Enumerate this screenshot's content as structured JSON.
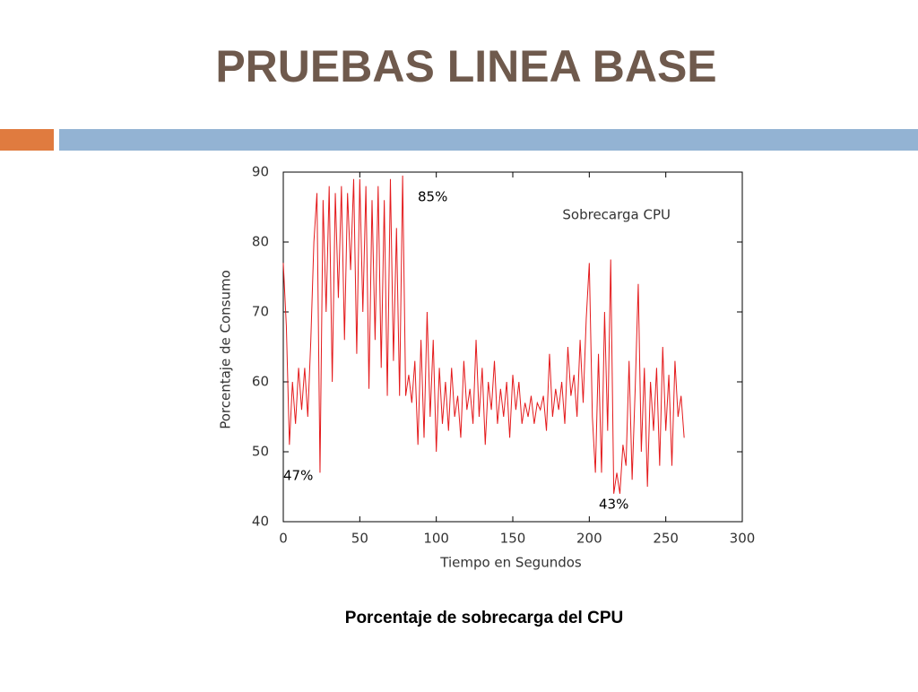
{
  "chart_data": {
    "type": "line",
    "title": "PRUEBAS LINEA BASE",
    "caption": "Porcentaje de sobrecarga del CPU",
    "x_label": "Tiempo en Segundos",
    "y_label": "Porcentaje de Consumo",
    "annotations": [
      "85%",
      "47%",
      "43%"
    ],
    "x": [
      0,
      2,
      4,
      6,
      8,
      10,
      12,
      14,
      16,
      18,
      20,
      22,
      24,
      26,
      28,
      30,
      32,
      34,
      36,
      38,
      40,
      42,
      44,
      46,
      48,
      50,
      52,
      54,
      56,
      58,
      60,
      62,
      64,
      66,
      68,
      70,
      72,
      74,
      76,
      78,
      80,
      82,
      84,
      86,
      88,
      90,
      92,
      94,
      96,
      98,
      100,
      102,
      104,
      106,
      108,
      110,
      112,
      114,
      116,
      118,
      120,
      122,
      124,
      126,
      128,
      130,
      132,
      134,
      136,
      138,
      140,
      142,
      144,
      146,
      148,
      150,
      152,
      154,
      156,
      158,
      160,
      162,
      164,
      166,
      168,
      170,
      172,
      174,
      176,
      178,
      180,
      182,
      184,
      186,
      188,
      190,
      192,
      194,
      196,
      198,
      200,
      202,
      204,
      206,
      208,
      210,
      212,
      214,
      216,
      218,
      220,
      222,
      224,
      226,
      228,
      230,
      232,
      234,
      236,
      238,
      240,
      242,
      244,
      246,
      248,
      250,
      252,
      254,
      256,
      258,
      260,
      262
    ],
    "series": [
      {
        "name": "Sobrecarga CPU",
        "color": "#e41a1c",
        "values": [
          77,
          68,
          51,
          60,
          54,
          62,
          56,
          62,
          55,
          66,
          80,
          87,
          47,
          86,
          70,
          88,
          60,
          87,
          72,
          88,
          66,
          87,
          76,
          89,
          64,
          89,
          70,
          88,
          59,
          86,
          66,
          88,
          62,
          86,
          58,
          89,
          63,
          82,
          58,
          89.5,
          58,
          61,
          57,
          63,
          51,
          66,
          52,
          70,
          55,
          66,
          50,
          62,
          54,
          60,
          53,
          62,
          55,
          58,
          52,
          63,
          56,
          59,
          54,
          66,
          55,
          62,
          51,
          60,
          56,
          63,
          54,
          59,
          55,
          60,
          52,
          61,
          56,
          60,
          54,
          57,
          55,
          58,
          54,
          57,
          56,
          58,
          53,
          64,
          55,
          59,
          56,
          60,
          54,
          65,
          58,
          61,
          55,
          66,
          57,
          69,
          77,
          55,
          47,
          64,
          47,
          70,
          53,
          77.5,
          44,
          47,
          44,
          51,
          48,
          63,
          46,
          59,
          74,
          50,
          62,
          45,
          60,
          53,
          62,
          48,
          65,
          53,
          61,
          48,
          63,
          55,
          58,
          52
        ]
      }
    ],
    "xlim": [
      0,
      300
    ],
    "ylim": [
      40,
      90
    ],
    "xticks": [
      0,
      50,
      100,
      150,
      200,
      250,
      300
    ],
    "yticks": [
      40,
      50,
      60,
      70,
      80,
      90
    ],
    "grid": false
  }
}
